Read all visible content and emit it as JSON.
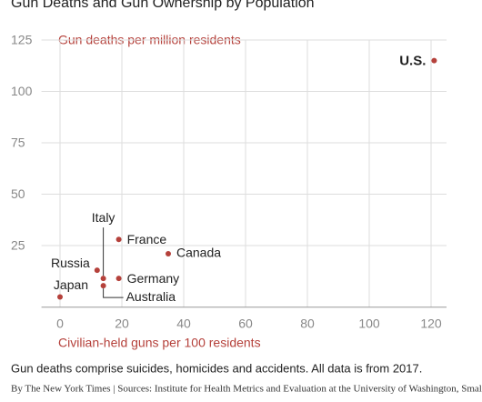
{
  "chart_data": {
    "type": "scatter",
    "title": "Gun Deaths and Gun Ownership by Population",
    "y_label": "Gun deaths per million residents",
    "x_label": "Civilian-held guns per 100 residents",
    "note": "Gun deaths comprise suicides, homicides and accidents. All data is from 2017.",
    "source": "By The New York Times | Sources: Institute for Health Metrics and Evaluation at the University of Washington, Small Arms Survey, World Bank",
    "labels": [
      "U.S.",
      "France",
      "Canada",
      "Russia",
      "Italy",
      "Germany",
      "Australia",
      "Japan"
    ],
    "x": [
      121,
      19,
      35,
      12,
      14,
      19,
      14,
      0
    ],
    "values": [
      115,
      28,
      21,
      13,
      9,
      9,
      5.5,
      0
    ],
    "color": "#b5413b",
    "xlim": [
      -6,
      125
    ],
    "ylim": [
      -5,
      125
    ],
    "xticks": [
      0,
      20,
      40,
      60,
      80,
      100,
      120
    ],
    "yticks": [
      25,
      50,
      75,
      100,
      125
    ],
    "grid": true
  }
}
